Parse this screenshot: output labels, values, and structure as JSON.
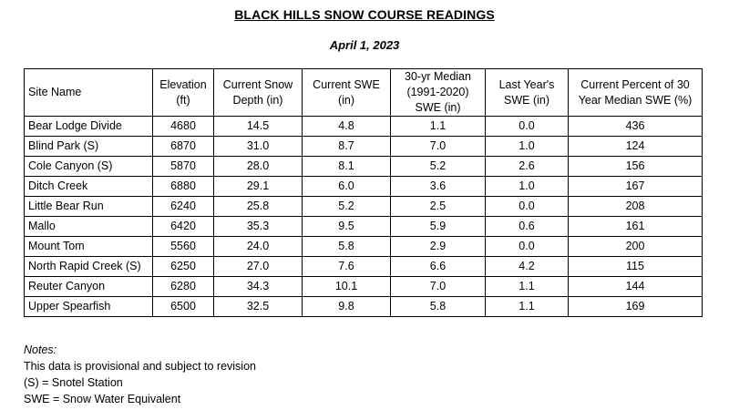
{
  "title": "BLACK HILLS SNOW COURSE READINGS",
  "date": "April 1, 2023",
  "table": {
    "headers": [
      "Site Name",
      "Elevation (ft)",
      "Current Snow Depth (in)",
      "Current SWE (in)",
      "30-yr Median (1991-2020) SWE (in)",
      "Last Year's SWE (in)",
      "Current Percent of 30 Year Median SWE (%)"
    ],
    "rows": [
      [
        "Bear Lodge Divide",
        "4680",
        "14.5",
        "4.8",
        "1.1",
        "0.0",
        "436"
      ],
      [
        "Blind Park (S)",
        "6870",
        "31.0",
        "8.7",
        "7.0",
        "1.0",
        "124"
      ],
      [
        "Cole Canyon (S)",
        "5870",
        "28.0",
        "8.1",
        "5.2",
        "2.6",
        "156"
      ],
      [
        "Ditch Creek",
        "6880",
        "29.1",
        "6.0",
        "3.6",
        "1.0",
        "167"
      ],
      [
        "Little Bear Run",
        "6240",
        "25.8",
        "5.2",
        "2.5",
        "0.0",
        "208"
      ],
      [
        "Mallo",
        "6420",
        "35.3",
        "9.5",
        "5.9",
        "0.6",
        "161"
      ],
      [
        "Mount Tom",
        "5560",
        "24.0",
        "5.8",
        "2.9",
        "0.0",
        "200"
      ],
      [
        "North Rapid Creek (S)",
        "6250",
        "27.0",
        "7.6",
        "6.6",
        "4.2",
        "115"
      ],
      [
        "Reuter Canyon",
        "6280",
        "34.3",
        "10.1",
        "7.0",
        "1.1",
        "144"
      ],
      [
        "Upper Spearfish",
        "6500",
        "32.5",
        "9.8",
        "5.8",
        "1.1",
        "169"
      ]
    ]
  },
  "notes": {
    "heading": "Notes:",
    "lines": [
      "This data is provisional and subject to revision",
      "(S) = Snotel Station",
      "SWE = Snow Water Equivalent"
    ]
  }
}
